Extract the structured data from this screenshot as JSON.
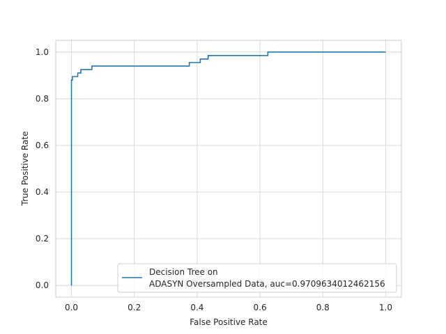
{
  "chart_data": {
    "type": "line",
    "title": "",
    "xlabel": "False Positive Rate",
    "ylabel": "True Positive Rate",
    "xlim": [
      -0.05,
      1.05
    ],
    "ylim": [
      -0.05,
      1.05
    ],
    "x_ticks": [
      0.0,
      0.2,
      0.4,
      0.6,
      0.8,
      1.0
    ],
    "y_ticks": [
      0.0,
      0.2,
      0.4,
      0.6,
      0.8,
      1.0
    ],
    "x_tick_labels": [
      "0.0",
      "0.2",
      "0.4",
      "0.6",
      "0.8",
      "1.0"
    ],
    "y_tick_labels": [
      "0.0",
      "0.2",
      "0.4",
      "0.6",
      "0.8",
      "1.0"
    ],
    "grid": true,
    "legend_position": "lower-right",
    "series": [
      {
        "name": "Decision Tree on ADASYN Oversampled Data, auc=0.9709634012462156",
        "legend_line1": "Decision Tree on",
        "legend_line2": "ADASYN Oversampled Data, auc=0.9709634012462156",
        "color": "#1f77b4",
        "step": true,
        "x": [
          0.0,
          0.0,
          0.003,
          0.003,
          0.02,
          0.02,
          0.03,
          0.03,
          0.065,
          0.065,
          0.375,
          0.375,
          0.41,
          0.41,
          0.435,
          0.435,
          0.625,
          0.625,
          1.0
        ],
        "y": [
          0.0,
          0.88,
          0.88,
          0.895,
          0.895,
          0.91,
          0.91,
          0.925,
          0.925,
          0.94,
          0.94,
          0.955,
          0.955,
          0.97,
          0.97,
          0.985,
          0.985,
          1.0,
          1.0
        ]
      }
    ]
  }
}
